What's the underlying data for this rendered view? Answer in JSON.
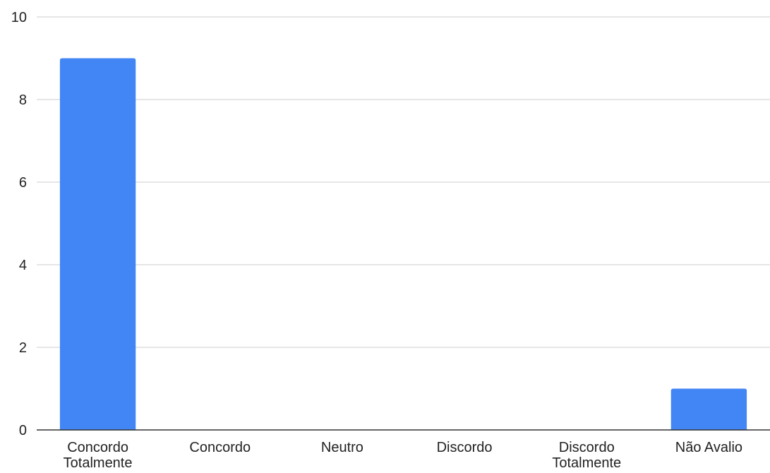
{
  "chart_data": {
    "type": "bar",
    "title": "",
    "xlabel": "",
    "ylabel": "",
    "categories": [
      [
        "Concordo",
        "Totalmente"
      ],
      [
        "Concordo"
      ],
      [
        "Neutro"
      ],
      [
        "Discordo"
      ],
      [
        "Discordo",
        "Totalmente"
      ],
      [
        "Não Avalio"
      ]
    ],
    "values": [
      9,
      0,
      0,
      0,
      0,
      1
    ],
    "ylim": [
      0,
      10
    ],
    "yticks": [
      0,
      2,
      4,
      6,
      8,
      10
    ],
    "grid": true,
    "legend": "none",
    "colors": {
      "bar": "#4285f4",
      "grid": "#cccccc",
      "axis": "#333333"
    }
  }
}
